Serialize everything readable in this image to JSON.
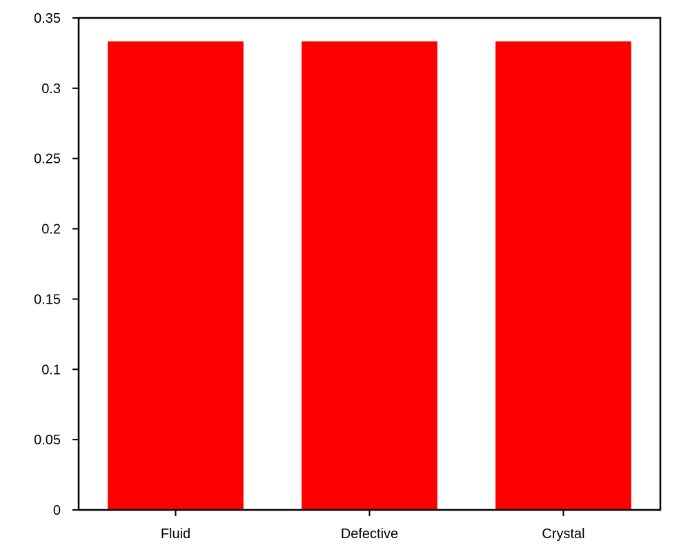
{
  "chart_data": {
    "type": "bar",
    "title": "",
    "xlabel": "",
    "ylabel": "",
    "categories": [
      "Fluid",
      "Defective",
      "Crystal"
    ],
    "values": [
      0.3333,
      0.3333,
      0.3333
    ],
    "ylim": [
      0,
      0.35
    ],
    "yticks": [
      0,
      0.05,
      0.1,
      0.15,
      0.2,
      0.25,
      0.3,
      0.35
    ],
    "ytick_labels": [
      "0",
      "0.05",
      "0.1",
      "0.15",
      "0.2",
      "0.25",
      "0.3",
      "0.35"
    ],
    "bar_color": "#ff0000",
    "grid": false,
    "legend": "none"
  }
}
